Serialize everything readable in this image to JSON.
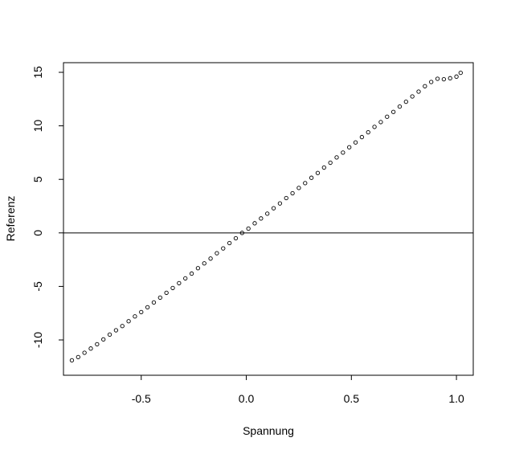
{
  "chart_data": {
    "type": "scatter",
    "title": "",
    "xlabel": "Spannung",
    "ylabel": "Referenz",
    "xlim": [
      -0.87,
      1.08
    ],
    "ylim": [
      -13.3,
      15.9
    ],
    "xticks": [
      -0.5,
      0.0,
      0.5,
      1.0
    ],
    "xtick_labels": [
      "-0.5",
      "0.0",
      "0.5",
      "1.0"
    ],
    "yticks": [
      -10,
      -5,
      0,
      5,
      10,
      15
    ],
    "ytick_labels": [
      "-10",
      "-5",
      "0",
      "5",
      "10",
      "15"
    ],
    "hline": 0,
    "grid": false,
    "marker": "open-circle",
    "colors": {
      "points": "#000000",
      "axes": "#000000",
      "background": "#ffffff"
    },
    "series": [
      {
        "points": [
          [
            -0.83,
            -11.9
          ],
          [
            -0.8,
            -11.6
          ],
          [
            -0.77,
            -11.2
          ],
          [
            -0.74,
            -10.8
          ],
          [
            -0.71,
            -10.4
          ],
          [
            -0.68,
            -9.95
          ],
          [
            -0.65,
            -9.5
          ],
          [
            -0.62,
            -9.1
          ],
          [
            -0.59,
            -8.7
          ],
          [
            -0.56,
            -8.25
          ],
          [
            -0.53,
            -7.8
          ],
          [
            -0.5,
            -7.4
          ],
          [
            -0.47,
            -6.95
          ],
          [
            -0.44,
            -6.5
          ],
          [
            -0.41,
            -6.05
          ],
          [
            -0.38,
            -5.6
          ],
          [
            -0.35,
            -5.15
          ],
          [
            -0.32,
            -4.7
          ],
          [
            -0.29,
            -4.25
          ],
          [
            -0.26,
            -3.8
          ],
          [
            -0.23,
            -3.3
          ],
          [
            -0.2,
            -2.85
          ],
          [
            -0.17,
            -2.4
          ],
          [
            -0.14,
            -1.9
          ],
          [
            -0.11,
            -1.45
          ],
          [
            -0.08,
            -0.95
          ],
          [
            -0.05,
            -0.5
          ],
          [
            -0.02,
            0.0
          ],
          [
            0.01,
            0.4
          ],
          [
            0.04,
            0.9
          ],
          [
            0.07,
            1.35
          ],
          [
            0.1,
            1.8
          ],
          [
            0.13,
            2.3
          ],
          [
            0.16,
            2.75
          ],
          [
            0.19,
            3.25
          ],
          [
            0.22,
            3.7
          ],
          [
            0.25,
            4.2
          ],
          [
            0.28,
            4.65
          ],
          [
            0.31,
            5.15
          ],
          [
            0.34,
            5.6
          ],
          [
            0.37,
            6.1
          ],
          [
            0.4,
            6.55
          ],
          [
            0.43,
            7.05
          ],
          [
            0.46,
            7.5
          ],
          [
            0.49,
            8.0
          ],
          [
            0.52,
            8.45
          ],
          [
            0.55,
            8.95
          ],
          [
            0.58,
            9.4
          ],
          [
            0.61,
            9.9
          ],
          [
            0.64,
            10.35
          ],
          [
            0.67,
            10.85
          ],
          [
            0.7,
            11.3
          ],
          [
            0.73,
            11.8
          ],
          [
            0.76,
            12.25
          ],
          [
            0.79,
            12.75
          ],
          [
            0.82,
            13.2
          ],
          [
            0.85,
            13.7
          ],
          [
            0.88,
            14.1
          ],
          [
            0.91,
            14.4
          ],
          [
            0.94,
            14.35
          ],
          [
            0.97,
            14.45
          ],
          [
            1.0,
            14.6
          ],
          [
            1.02,
            14.95
          ]
        ]
      }
    ]
  }
}
